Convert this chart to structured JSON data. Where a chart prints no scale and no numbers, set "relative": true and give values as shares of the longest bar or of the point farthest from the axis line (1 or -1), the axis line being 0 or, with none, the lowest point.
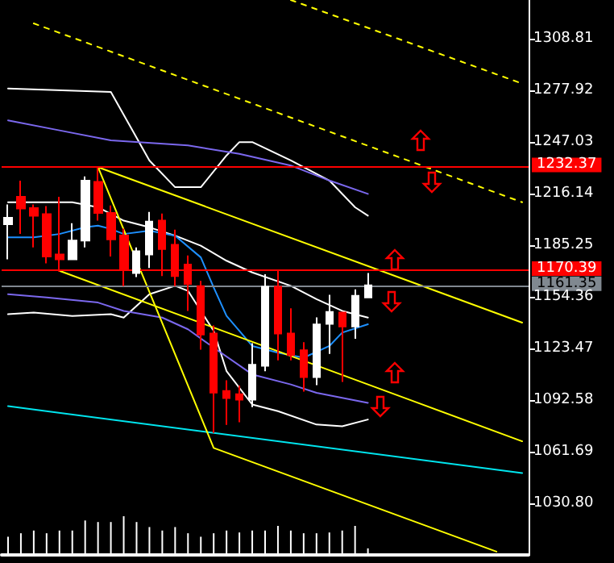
{
  "chart_data": [
    {
      "type": "candlestick",
      "categories": [
        null,
        null,
        null,
        null,
        null,
        null,
        null,
        null,
        null,
        null,
        null,
        null,
        null,
        null,
        null,
        null,
        null,
        null,
        null,
        null,
        null,
        null,
        null,
        null,
        null,
        null,
        null,
        null,
        null,
        null,
        null,
        null,
        null,
        null,
        null,
        null,
        null,
        null,
        null,
        null,
        null
      ],
      "ohlc": [
        [
          1197.8,
          1209.7,
          1176.9,
          1201.7
        ],
        [
          1214.2,
          1223.9,
          1192.0,
          1207.2
        ],
        [
          1207.5,
          1209.7,
          1184.0,
          1202.9
        ],
        [
          1203.9,
          1208.7,
          1174.4,
          1178.5
        ],
        [
          1179.8,
          1214.2,
          1169.5,
          1176.9
        ],
        [
          1176.9,
          1198.5,
          1176.9,
          1188.1
        ],
        [
          1188.1,
          1226.5,
          1184.0,
          1223.9
        ],
        [
          1223.2,
          1231.6,
          1200.0,
          1204.6
        ],
        [
          1204.6,
          1209.1,
          1178.5,
          1188.8
        ],
        [
          1191.1,
          1195.2,
          1160.8,
          1170.5
        ],
        [
          1168.6,
          1184.0,
          1166.2,
          1181.7
        ],
        [
          1179.8,
          1205.2,
          1171.7,
          1199.4
        ],
        [
          1200.0,
          1204.3,
          1166.9,
          1183.0
        ],
        [
          1185.5,
          1194.6,
          1160.8,
          1166.9
        ],
        [
          1173.7,
          1179.2,
          1146.0,
          1162.1
        ],
        [
          1160.8,
          1164.0,
          1122.8,
          1131.9
        ],
        [
          1132.5,
          1137.3,
          1073.0,
          1097.1
        ],
        [
          1098.1,
          1104.5,
          1077.8,
          1093.8
        ],
        [
          1096.1,
          1101.3,
          1079.4,
          1092.9
        ],
        [
          1092.9,
          1126.7,
          1088.4,
          1113.8
        ],
        [
          1113.2,
          1167.9,
          1109.9,
          1160.4
        ],
        [
          1160.4,
          1170.5,
          1116.4,
          1132.5
        ],
        [
          1132.5,
          1147.6,
          1116.4,
          1119.6
        ],
        [
          1122.5,
          1127.3,
          1097.7,
          1106.4
        ],
        [
          1106.4,
          1142.1,
          1101.6,
          1137.9
        ],
        [
          1138.2,
          1155.6,
          1120.3,
          1145.4
        ],
        [
          1145.0,
          1145.0,
          1103.5,
          1136.7
        ],
        [
          1136.7,
          1158.9,
          1129.3,
          1155.0
        ],
        [
          1154.1,
          1168.6,
          1154.1,
          1161.35
        ],
        null,
        null,
        null,
        null,
        null,
        null,
        null,
        null,
        null,
        null,
        null,
        null
      ],
      "colors": [
        "#ffffff",
        "#ff0000",
        "#ff0000",
        "#ff0000",
        "#ff0000",
        "#ffffff",
        "#ffffff",
        "#ff0000",
        "#ff0000",
        "#ff0000",
        "#ffffff",
        "#ffffff",
        "#ff0000",
        "#ff0000",
        "#ff0000",
        "#ff0000",
        "#ff0000",
        "#ff0000",
        "#ff0000",
        "#ffffff",
        "#ffffff",
        "#ff0000",
        "#ff0000",
        "#ff0000",
        "#ffffff",
        "#ffffff",
        "#ff0000",
        "#ffffff",
        "#ffffff",
        null,
        null,
        null,
        null,
        null,
        null,
        null,
        null,
        null,
        null,
        null,
        null
      ],
      "ylim": [
        1000,
        1332
      ],
      "yticks": [
        {
          "value": 1030.8,
          "label": "1030.80"
        },
        1061.69,
        1092.58,
        1123.47,
        1154.36,
        1185.25,
        1216.14,
        1247.03,
        1277.92,
        1308.81
      ],
      "tick_labels": "y",
      "series": [
        {
          "type": "line",
          "color": "#ffffff",
          "line_style": "solid",
          "values": [
            1279,
            null,
            null,
            null,
            null,
            null,
            null,
            null,
            1277,
            null,
            null,
            1236,
            null,
            1220,
            null,
            1220,
            null,
            1239,
            1247,
            1247,
            null,
            null,
            1236,
            null,
            null,
            1224,
            null,
            1208,
            1203,
            null,
            null,
            null,
            null,
            null,
            null,
            null,
            null,
            null,
            null,
            null,
            null
          ]
        },
        {
          "type": "line",
          "color": "#ffffff",
          "line_style": "solid",
          "values": [
            1211,
            null,
            null,
            null,
            null,
            1211,
            null,
            1208,
            null,
            1200,
            null,
            1196,
            null,
            1191,
            null,
            1185,
            null,
            1176,
            null,
            1169,
            null,
            null,
            1161,
            null,
            1153,
            null,
            1146,
            null,
            1142,
            null,
            null,
            null,
            null,
            null,
            null,
            null,
            null,
            null,
            null,
            null,
            null
          ]
        },
        {
          "type": "line",
          "color": "#ffffff",
          "line_style": "solid",
          "values": [
            1144,
            null,
            1145,
            null,
            null,
            1143,
            null,
            null,
            1144,
            1142,
            null,
            1156,
            null,
            1161,
            1158,
            null,
            1134,
            1110,
            null,
            1090,
            null,
            1086,
            null,
            null,
            1078,
            null,
            1077,
            null,
            1081,
            null,
            null,
            null,
            null,
            null,
            null,
            null,
            null,
            null,
            null,
            null,
            null
          ]
        },
        {
          "type": "line",
          "color": "#1e90ff",
          "line_style": "solid",
          "values": [
            1190,
            null,
            1190,
            null,
            1192,
            null,
            1196,
            1197,
            1195,
            1192,
            null,
            1194,
            null,
            1191,
            null,
            1178,
            1160,
            1143,
            null,
            1125,
            null,
            1121,
            null,
            1118,
            null,
            1125,
            1133,
            null,
            1138,
            null,
            null,
            null,
            null,
            null,
            null,
            null,
            null,
            null,
            null,
            null,
            null
          ]
        },
        {
          "type": "line",
          "color": "#7b68ee",
          "line_style": "solid",
          "values": [
            1260,
            null,
            null,
            null,
            1254,
            null,
            null,
            null,
            1248,
            null,
            null,
            null,
            null,
            null,
            1245,
            null,
            null,
            null,
            1240,
            null,
            null,
            null,
            1233,
            null,
            null,
            1224,
            null,
            null,
            1216,
            null,
            null,
            null,
            null,
            null,
            null,
            null,
            null,
            null,
            null,
            null,
            null
          ]
        },
        {
          "type": "line",
          "color": "#7b68ee",
          "line_style": "solid",
          "values": [
            1156,
            null,
            null,
            1154,
            null,
            null,
            null,
            1151,
            null,
            1146,
            null,
            null,
            1142,
            null,
            1135,
            null,
            1124,
            null,
            null,
            1108,
            null,
            null,
            1102,
            null,
            1097,
            null,
            null,
            null,
            1091,
            null,
            null,
            null,
            null,
            null,
            null,
            null,
            null,
            null,
            null,
            null,
            null
          ]
        },
        {
          "type": "line",
          "color": "#00e5ee",
          "line_style": "solid",
          "values": [
            1089,
            null,
            null,
            null,
            null,
            null,
            null,
            null,
            null,
            null,
            null,
            null,
            null,
            null,
            null,
            null,
            null,
            null,
            null,
            null,
            null,
            null,
            null,
            null,
            null,
            null,
            null,
            null,
            null,
            null,
            null,
            null,
            null,
            null,
            null,
            null,
            null,
            null,
            null,
            null,
            1049
          ]
        },
        {
          "type": "line",
          "color": "#ffff00",
          "line_style": "solid",
          "values": [
            null,
            null,
            null,
            null,
            null,
            null,
            null,
            1232,
            null,
            null,
            null,
            null,
            null,
            null,
            null,
            null,
            null,
            null,
            null,
            null,
            null,
            null,
            null,
            null,
            null,
            null,
            null,
            null,
            null,
            null,
            null,
            null,
            null,
            null,
            null,
            null,
            null,
            null,
            null,
            null,
            1139
          ]
        },
        {
          "type": "line",
          "color": "#ffff00",
          "line_style": "solid",
          "values": [
            null,
            null,
            null,
            null,
            1170,
            null,
            null,
            null,
            null,
            null,
            null,
            null,
            null,
            null,
            null,
            null,
            null,
            null,
            null,
            null,
            null,
            null,
            null,
            null,
            null,
            null,
            null,
            null,
            null,
            null,
            null,
            null,
            null,
            null,
            null,
            null,
            null,
            null,
            null,
            null,
            1068
          ]
        },
        {
          "type": "line",
          "color": "#ffff00",
          "line_style": "solid",
          "values": [
            null,
            null,
            null,
            null,
            null,
            null,
            null,
            1232,
            null,
            null,
            null,
            null,
            null,
            null,
            null,
            null,
            1064,
            null,
            null,
            null,
            null,
            null,
            null,
            null,
            null,
            null,
            null,
            null,
            null,
            null,
            null,
            null,
            null,
            null,
            null,
            null,
            null,
            null,
            1002,
            null,
            null
          ]
        },
        {
          "type": "line",
          "color": "#ffff00",
          "line_style": "dashed",
          "values": [
            null,
            null,
            1318,
            null,
            null,
            null,
            null,
            null,
            null,
            null,
            null,
            null,
            null,
            null,
            null,
            null,
            null,
            null,
            null,
            null,
            null,
            null,
            null,
            null,
            null,
            null,
            null,
            null,
            null,
            null,
            null,
            null,
            null,
            null,
            null,
            null,
            null,
            null,
            null,
            null,
            1211
          ]
        },
        {
          "type": "line",
          "color": "#ffff00",
          "line_style": "dashed",
          "values": [
            null,
            null,
            null,
            null,
            null,
            null,
            null,
            null,
            null,
            null,
            null,
            null,
            null,
            null,
            null,
            null,
            null,
            null,
            null,
            null,
            null,
            null,
            1332,
            null,
            null,
            null,
            null,
            null,
            null,
            null,
            null,
            null,
            null,
            null,
            null,
            null,
            null,
            null,
            null,
            null,
            1282
          ]
        }
      ],
      "ref_lines": [
        {
          "axis": "y",
          "value": 1232.37,
          "label": "1232.37",
          "color": "#ff0000"
        },
        {
          "axis": "y",
          "value": 1170.39,
          "label": "1170.39",
          "color": "#ff0000"
        },
        {
          "axis": "y",
          "value": 1161.35,
          "label": "1161.35",
          "color": "#808890"
        }
      ]
    },
    {
      "type": "bar",
      "relative": true,
      "tick_labels": false,
      "categories": [
        null,
        null,
        null,
        null,
        null,
        null,
        null,
        null,
        null,
        null,
        null,
        null,
        null,
        null,
        null,
        null,
        null,
        null,
        null,
        null,
        null,
        null,
        null,
        null,
        null,
        null,
        null,
        null,
        null,
        null,
        null,
        null,
        null,
        null,
        null,
        null,
        null,
        null,
        null,
        null,
        null
      ],
      "color": "#ffffff",
      "values": [
        0.47,
        0.56,
        0.63,
        0.56,
        0.63,
        0.63,
        0.89,
        0.85,
        0.85,
        1,
        0.85,
        0.72,
        0.63,
        0.72,
        0.56,
        0.47,
        0.56,
        0.63,
        0.58,
        0.63,
        0.63,
        0.75,
        0.63,
        0.56,
        0.56,
        0.58,
        0.63,
        0.75,
        0.17,
        null,
        null,
        null,
        null,
        null,
        null,
        null,
        null,
        null,
        null,
        null,
        null
      ]
    }
  ]
}
